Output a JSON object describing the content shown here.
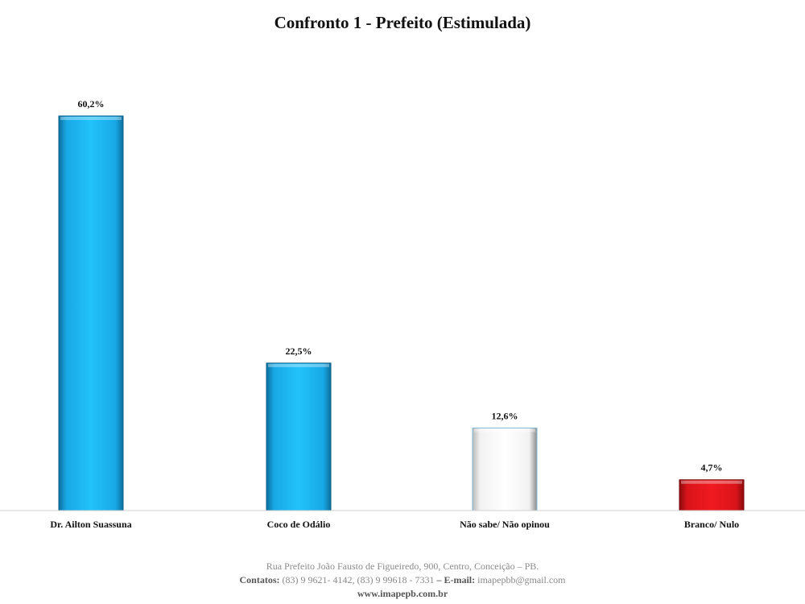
{
  "chart_data": {
    "type": "bar",
    "title": "Confronto 1 - Prefeito (Estimulada)",
    "categories": [
      "Dr. Ailton Suassuna",
      "Coco de Odálio",
      "Não sabe/ Não opinou",
      "Branco/ Nulo"
    ],
    "values": [
      60.2,
      22.5,
      12.6,
      4.7
    ],
    "value_labels": [
      "60,2%",
      "22,5%",
      "12,6%",
      "4,7%"
    ],
    "colors": [
      "#1bb4ef",
      "#1bb4ef",
      "#ffffff",
      "#e8141b"
    ],
    "xlabel": "",
    "ylabel": "",
    "ylim": [
      0,
      65
    ],
    "grid": false,
    "legend": "none"
  },
  "footer": {
    "address": "Rua Prefeito João Fausto de Figueiredo, 900, Centro, Conceição – PB.",
    "contacts_label": "Contatos:",
    "contacts_value": " (83) 9 9621- 4142, (83) 9 99618 - 7331 ",
    "email_label": "– E-mail:",
    "email_value": " imapepbb@gmail.com",
    "website": "www.imapepb.com.br"
  }
}
